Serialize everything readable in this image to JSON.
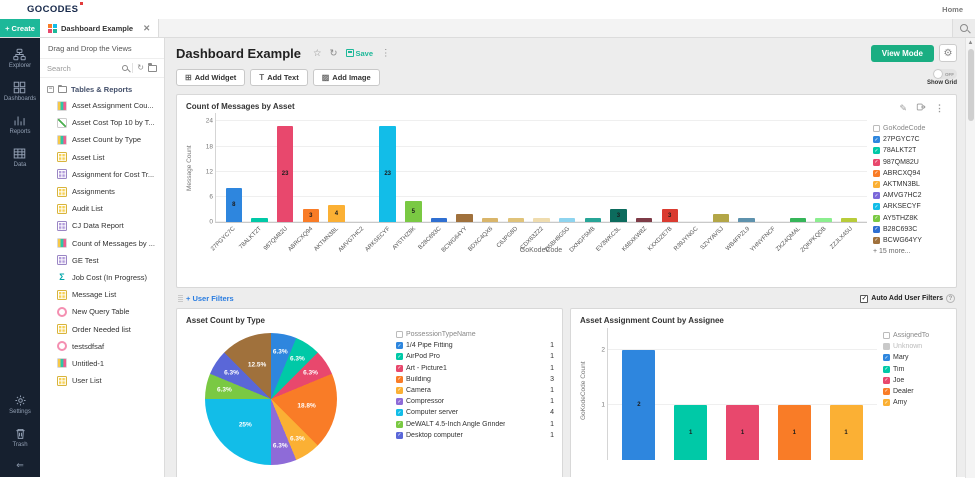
{
  "topbar": {
    "logo_go": "GO",
    "logo_codes": "CODES",
    "home": "Home"
  },
  "tabbar": {
    "create_label": "+ Create",
    "tab_label": "Dashboard Example"
  },
  "nav": {
    "items": [
      {
        "id": "explorer",
        "label": "Explorer"
      },
      {
        "id": "dashboards",
        "label": "Dashboards"
      },
      {
        "id": "reports",
        "label": "Reports"
      },
      {
        "id": "data",
        "label": "Data"
      }
    ],
    "bottom_items": [
      {
        "id": "settings",
        "label": "Settings"
      },
      {
        "id": "trash",
        "label": "Trash"
      }
    ]
  },
  "views_panel": {
    "header": "Drag and Drop the Views",
    "search_placeholder": "Search",
    "root_label": "Tables & Reports",
    "items": [
      {
        "icon": "bar",
        "label": "Asset Assignment Cou..."
      },
      {
        "icon": "line",
        "label": "Asset Cost Top 10 by T..."
      },
      {
        "icon": "bar",
        "label": "Asset Count by Type"
      },
      {
        "icon": "table-y",
        "label": "Asset List"
      },
      {
        "icon": "table-p",
        "label": "Assignment for Cost Tr..."
      },
      {
        "icon": "table-y",
        "label": "Assignments"
      },
      {
        "icon": "table-y",
        "label": "Audit List"
      },
      {
        "icon": "table-p",
        "label": "CJ Data Report"
      },
      {
        "icon": "bar",
        "label": "Count of Messages by ..."
      },
      {
        "icon": "table-p",
        "label": "GE Test"
      },
      {
        "icon": "sigma",
        "label": "Job Cost (In Progress)"
      },
      {
        "icon": "table-y",
        "label": "Message List"
      },
      {
        "icon": "query",
        "label": "New Query Table"
      },
      {
        "icon": "table-y",
        "label": "Order Needed list"
      },
      {
        "icon": "query",
        "label": "testsdfsaf"
      },
      {
        "icon": "bar",
        "label": "Untitled-1"
      },
      {
        "icon": "table-y",
        "label": "User List"
      }
    ]
  },
  "main": {
    "title": "Dashboard Example",
    "save_label": "Save",
    "view_mode_label": "View Mode",
    "add_widget": "Add Widget",
    "add_text": "Add Text",
    "add_image": "Add Image",
    "toggle_label": "OFF",
    "show_grid_label": "Show Grid",
    "user_filters_label": "+ User Filters",
    "auto_add_label": "Auto Add User Filters"
  },
  "chart_data": [
    {
      "type": "bar",
      "title": "Count of Messages by Asset",
      "xlabel": "GoKodeCode",
      "ylabel": "Message Count",
      "ylim": [
        0,
        26
      ],
      "yticks": [
        0,
        6,
        12,
        18,
        24
      ],
      "categories": [
        "27PGYC7C",
        "78ALKT2T",
        "987QM82U",
        "ABRCXQ94",
        "AKTMN3BL",
        "AMVG7HC2",
        "ARKSECYF",
        "AY5THZ8K",
        "B28C693C",
        "BCWG64YY",
        "BDXC4QX6",
        "C6JPG8D",
        "CDX63Z22",
        "D5BH8G5G",
        "DXNGF5MB",
        "EV3WKC3L",
        "K6BXKW8Z",
        "KXXDZE7B",
        "R39JYNGC",
        "SZVYAVSJ",
        "WB4FPZL9",
        "YHNYFNCF",
        "ZKZ4QMAL",
        "ZQKPKQDB",
        "ZZJLX45U"
      ],
      "values": [
        8,
        1,
        23,
        3,
        4,
        0,
        23,
        5,
        1,
        2,
        1,
        1,
        1,
        1,
        1,
        3,
        1,
        3,
        0,
        2,
        1,
        0,
        1,
        1,
        1
      ],
      "colors": [
        "#2e86de",
        "#00c9a7",
        "#e8486d",
        "#f97c27",
        "#fbb034",
        "#7b68d9",
        "#12bde8",
        "#7ac943",
        "#2f6fd1",
        "#a0713c",
        "#d9b56a",
        "#e0c37a",
        "#efdcae",
        "#8ed4ef",
        "#27a597",
        "#0c6b5d",
        "#7e3b47",
        "#da3b30",
        "#cccccc",
        "#b3a647",
        "#5e92ad",
        "#cccccc",
        "#35b559",
        "#8bee8f",
        "#b8cc3a"
      ],
      "legend_title": "GoKodeCode",
      "legend_visible_count": 10,
      "legend_more": "+ 15 more..."
    },
    {
      "type": "pie",
      "title": "Asset Count by Type",
      "legend_title": "PossessionTypeName",
      "slices": [
        {
          "label": "1/4 Pipe Fitting",
          "value": 1,
          "pct": "6.3%",
          "color": "#2e86de"
        },
        {
          "label": "AirPod Pro",
          "value": 1,
          "pct": "6.3%",
          "color": "#00c9a7"
        },
        {
          "label": "Art - Picture1",
          "value": 1,
          "pct": "6.3%",
          "color": "#e8486d"
        },
        {
          "label": "Building",
          "value": 3,
          "pct": "18.8%",
          "color": "#f97c27"
        },
        {
          "label": "Camera",
          "value": 1,
          "pct": "6.3%",
          "color": "#fbb034"
        },
        {
          "label": "Compressor",
          "value": 1,
          "pct": "6.3%",
          "color": "#8e6bd8"
        },
        {
          "label": "Computer server",
          "value": 4,
          "pct": "25%",
          "color": "#12bde8"
        },
        {
          "label": "DeWALT 4.5-Inch Angle Grinder",
          "value": 1,
          "pct": "6.3%",
          "color": "#7ac943"
        },
        {
          "label": "Desktop computer",
          "value": 1,
          "pct": "6.3%",
          "color": "#5a67d8"
        },
        {
          "label": "",
          "value": 2,
          "pct": "12.5%",
          "color": "#a0713c"
        }
      ]
    },
    {
      "type": "bar",
      "title": "Asset Assignment Count by Assignee",
      "ylabel": "GoKodeCode Count",
      "ylim": [
        0,
        2.4
      ],
      "yticks": [
        1,
        2
      ],
      "categories": [
        "Mary",
        "Tim",
        "Joe",
        "Dealer",
        "Amy"
      ],
      "values": [
        2,
        1,
        1,
        1,
        1
      ],
      "colors": [
        "#2e86de",
        "#00c9a7",
        "#e8486d",
        "#f97c27",
        "#fbb034"
      ],
      "legend_title": "AssignedTo",
      "legend_items": [
        {
          "label": "Unknown",
          "muted": true
        },
        {
          "label": "Mary",
          "color": "#2e86de"
        },
        {
          "label": "Tim",
          "color": "#00c9a7"
        },
        {
          "label": "Joe",
          "color": "#e8486d"
        },
        {
          "label": "Dealer",
          "color": "#f97c27"
        },
        {
          "label": "Amy",
          "color": "#fbb034"
        }
      ]
    }
  ]
}
